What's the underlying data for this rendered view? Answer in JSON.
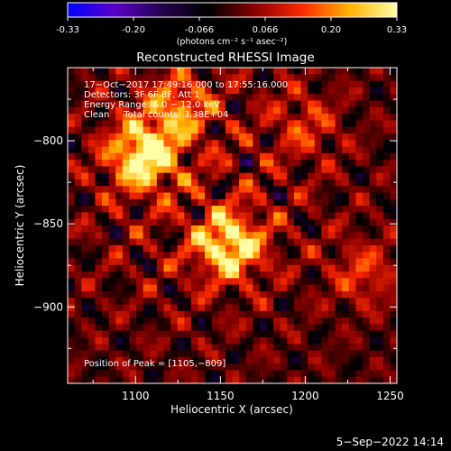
{
  "colorbar": {
    "ticks": [
      "-0.33",
      "-0.20",
      "-0.066",
      "0.066",
      "0.20",
      "0.33"
    ],
    "unit_label": "(photons cm⁻² s⁻¹ asec⁻²)",
    "range": [
      -0.33,
      0.33
    ],
    "colors": [
      "#0000ff",
      "#5a00c8",
      "#24004e",
      "#000000",
      "#8c0000",
      "#ff2a00",
      "#ffb400",
      "#ffffa8"
    ]
  },
  "chart_data": {
    "type": "heatmap",
    "title": "Reconstructed RHESSI Image",
    "xlabel": "Heliocentric X (arcsec)",
    "ylabel": "Heliocentric Y (arcsec)",
    "xlim": [
      1060,
      1254
    ],
    "ylim": [
      -946,
      -756
    ],
    "x_ticks": [
      1100,
      1150,
      1200,
      1250
    ],
    "y_ticks": [
      -800,
      -850,
      -900
    ],
    "x_tick_labels": [
      "1100",
      "1150",
      "1200",
      "1250"
    ],
    "y_tick_labels": [
      "−800",
      "−850",
      "−900"
    ],
    "peak": {
      "x": 1105,
      "y": -809
    },
    "sources": [
      {
        "x": 1105,
        "y": -809,
        "intensity": 0.33
      },
      {
        "x": 1155,
        "y": -863,
        "intensity": 0.3
      },
      {
        "x": 1125,
        "y": -780,
        "intensity": 0.18
      },
      {
        "x": 1235,
        "y": -880,
        "intensity": 0.12
      },
      {
        "x": 1200,
        "y": -790,
        "intensity": 0.1
      }
    ],
    "annotations": [
      "17−Oct−2017 17:49:16.000 to 17:55:16.000",
      "Detectors: 3F 6F 8F, Att 1",
      "Energy Range: 6.0 − 12.0 keV",
      "Clean     Total counts: 3.38E+04"
    ],
    "peak_label": "Position of Peak = [1105,−809]"
  },
  "footer": {
    "timestamp": "5−Sep−2022 14:14"
  }
}
